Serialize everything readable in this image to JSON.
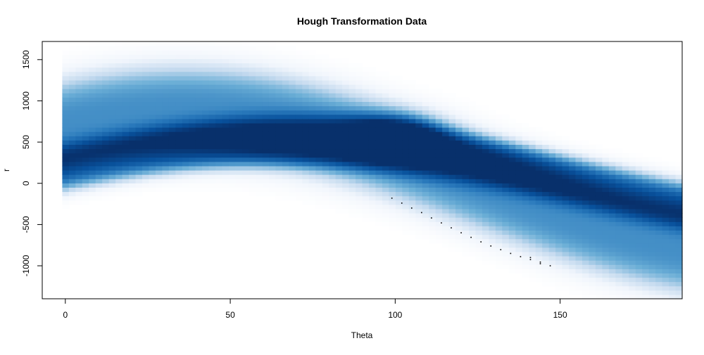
{
  "chart_data": {
    "type": "heatmap",
    "title": "Hough Transformation Data",
    "xlabel": "Theta",
    "ylabel": "r",
    "xlim": [
      -7,
      187
    ],
    "ylim": [
      -1400,
      1720
    ],
    "x_ticks": [
      0,
      50,
      100,
      150
    ],
    "y_ticks": [
      -1000,
      -500,
      0,
      500,
      1000,
      1500
    ],
    "grid": false,
    "legend": "none",
    "colormap": [
      "#ffffff",
      "#f0f5fc",
      "#c6dbef",
      "#6baed6",
      "#2a7abc",
      "#08519c",
      "#08306b"
    ],
    "bands": [
      {
        "a": 700,
        "b": 500,
        "phase_deg": 0,
        "width": 620,
        "weight": 0.6
      },
      {
        "a": 180,
        "b": 480,
        "phase_deg": 0,
        "width": 300,
        "weight": 0.55
      }
    ],
    "peak": {
      "theta": 101,
      "r": 600,
      "intensity": 0.45
    },
    "dotted_points": [
      {
        "theta": 99,
        "r": -180
      },
      {
        "theta": 102,
        "r": -240
      },
      {
        "theta": 105,
        "r": -300
      },
      {
        "theta": 108,
        "r": -355
      },
      {
        "theta": 111,
        "r": -420
      },
      {
        "theta": 114,
        "r": -480
      },
      {
        "theta": 117,
        "r": -540
      },
      {
        "theta": 120,
        "r": -600
      },
      {
        "theta": 123,
        "r": -655
      },
      {
        "theta": 126,
        "r": -710
      },
      {
        "theta": 129,
        "r": -760
      },
      {
        "theta": 132,
        "r": -805
      },
      {
        "theta": 135,
        "r": -850
      },
      {
        "theta": 138,
        "r": -890
      },
      {
        "theta": 141,
        "r": -900
      },
      {
        "theta": 141,
        "r": -925
      },
      {
        "theta": 144,
        "r": -955
      },
      {
        "theta": 144,
        "r": -975
      },
      {
        "theta": 147,
        "r": -1000
      }
    ]
  }
}
